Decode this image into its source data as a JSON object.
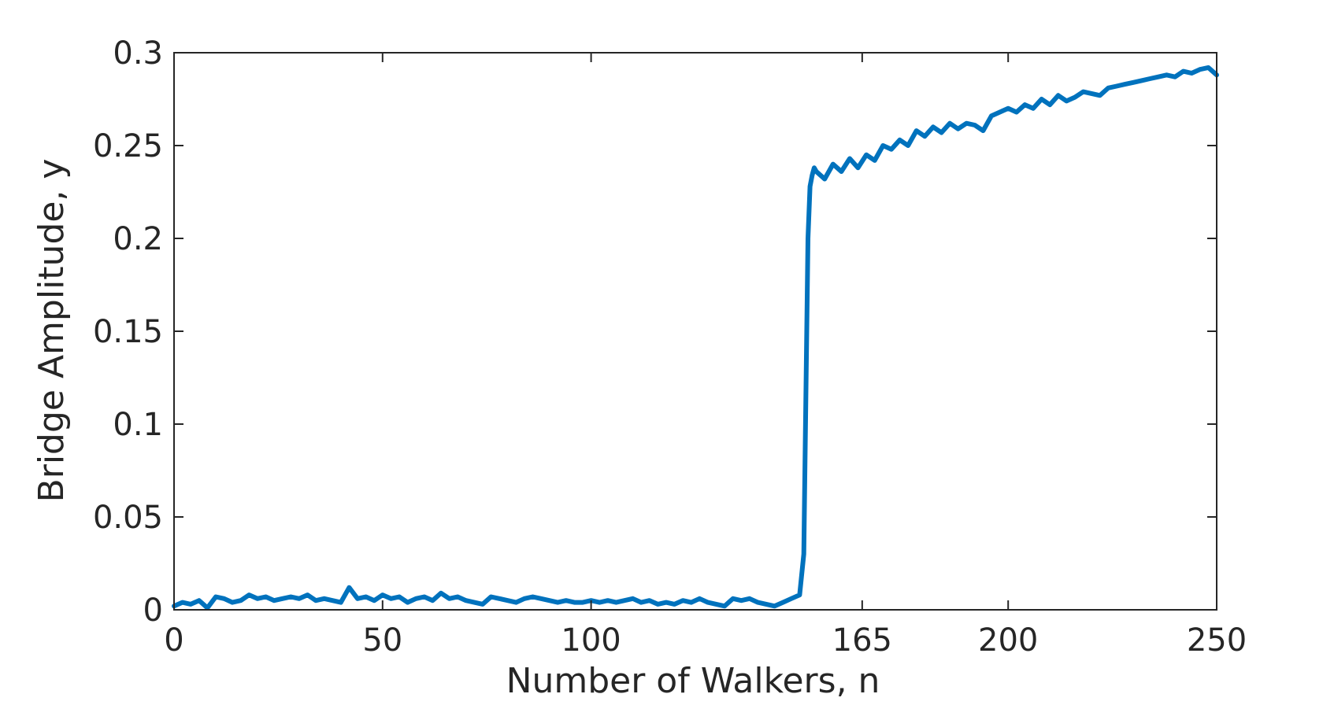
{
  "chart_data": {
    "type": "line",
    "title": "",
    "xlabel": "Number of Walkers, n",
    "ylabel": "Bridge Amplitude, y",
    "xlim": [
      0,
      250
    ],
    "ylim": [
      0,
      0.3
    ],
    "xticks": [
      0,
      50,
      100,
      165,
      200,
      250
    ],
    "xtick_labels": [
      "0",
      "50",
      "100",
      "165",
      "200",
      "250"
    ],
    "yticks": [
      0,
      0.05,
      0.1,
      0.15,
      0.2,
      0.25,
      0.3
    ],
    "ytick_labels": [
      "0",
      "0.05",
      "0.1",
      "0.15",
      "0.2",
      "0.25",
      "0.3"
    ],
    "grid": false,
    "legend": "none",
    "line_color": "#0072BD",
    "series": [
      {
        "x": [
          0,
          2,
          4,
          6,
          8,
          10,
          12,
          14,
          16,
          18,
          20,
          22,
          24,
          26,
          28,
          30,
          32,
          34,
          36,
          38,
          40,
          42,
          44,
          46,
          48,
          50,
          52,
          54,
          56,
          58,
          60,
          62,
          64,
          66,
          68,
          70,
          72,
          74,
          76,
          78,
          80,
          82,
          84,
          86,
          88,
          90,
          92,
          94,
          96,
          98,
          100,
          102,
          104,
          106,
          108,
          110,
          112,
          114,
          116,
          118,
          120,
          122,
          124,
          126,
          128,
          130,
          132,
          134,
          136,
          138,
          140,
          142,
          144,
          146,
          148,
          150,
          151,
          152,
          152.5,
          153,
          153.5,
          154,
          156,
          158,
          160,
          162,
          164,
          166,
          168,
          170,
          172,
          174,
          176,
          178,
          180,
          182,
          184,
          186,
          188,
          190,
          192,
          194,
          196,
          198,
          200,
          202,
          204,
          206,
          208,
          210,
          212,
          214,
          216,
          218,
          220,
          222,
          224,
          226,
          228,
          230,
          232,
          234,
          236,
          238,
          240,
          242,
          244,
          246,
          248,
          250
        ],
        "values": [
          0.002,
          0.004,
          0.003,
          0.005,
          0.001,
          0.007,
          0.006,
          0.004,
          0.005,
          0.008,
          0.006,
          0.007,
          0.005,
          0.006,
          0.007,
          0.006,
          0.008,
          0.005,
          0.006,
          0.005,
          0.004,
          0.012,
          0.006,
          0.007,
          0.005,
          0.008,
          0.006,
          0.007,
          0.004,
          0.006,
          0.007,
          0.005,
          0.009,
          0.006,
          0.007,
          0.005,
          0.004,
          0.003,
          0.007,
          0.006,
          0.005,
          0.004,
          0.006,
          0.007,
          0.006,
          0.005,
          0.004,
          0.005,
          0.004,
          0.004,
          0.005,
          0.004,
          0.005,
          0.004,
          0.005,
          0.006,
          0.004,
          0.005,
          0.003,
          0.004,
          0.003,
          0.005,
          0.004,
          0.006,
          0.004,
          0.003,
          0.002,
          0.006,
          0.005,
          0.006,
          0.004,
          0.003,
          0.002,
          0.004,
          0.006,
          0.008,
          0.03,
          0.2,
          0.228,
          0.234,
          0.238,
          0.236,
          0.232,
          0.24,
          0.236,
          0.243,
          0.238,
          0.245,
          0.242,
          0.25,
          0.248,
          0.253,
          0.25,
          0.258,
          0.255,
          0.26,
          0.257,
          0.262,
          0.259,
          0.262,
          0.261,
          0.258,
          0.266,
          0.268,
          0.27,
          0.268,
          0.272,
          0.27,
          0.275,
          0.272,
          0.277,
          0.274,
          0.276,
          0.279,
          0.278,
          0.277,
          0.281,
          0.282,
          0.283,
          0.284,
          0.285,
          0.286,
          0.287,
          0.288,
          0.287,
          0.29,
          0.289,
          0.291,
          0.292,
          0.288
        ]
      }
    ]
  }
}
